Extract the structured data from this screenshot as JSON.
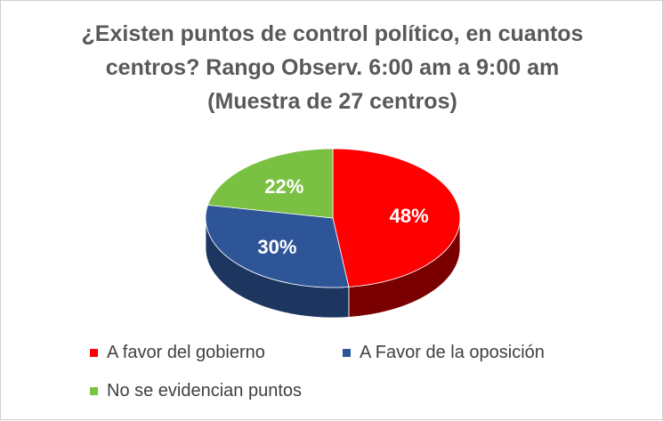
{
  "title_lines": [
    "¿Existen puntos de control político, en cuantos",
    "centros? Rango Observ. 6:00 am a 9:00 am",
    "(Muestra de 27 centros)"
  ],
  "chart_data": {
    "type": "pie",
    "style": "3d",
    "title": "¿Existen puntos de control político, en cuantos centros? Rango Observ. 6:00 am a 9:00 am (Muestra de 27 centros)",
    "categories": [
      "A favor del gobierno",
      "A Favor de la oposición",
      "No se evidencian puntos"
    ],
    "values": [
      48,
      30,
      22
    ],
    "labels": [
      "48%",
      "30%",
      "22%"
    ],
    "colors": [
      "#ff0000",
      "#2e5597",
      "#7ac143"
    ],
    "side_colors": [
      "#7a0000",
      "#1c3660",
      "#4d7a2a"
    ],
    "legend_position": "bottom"
  }
}
